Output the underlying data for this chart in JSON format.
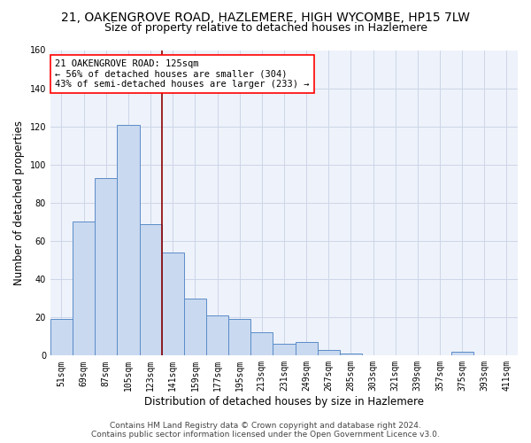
{
  "title_line1": "21, OAKENGROVE ROAD, HAZLEMERE, HIGH WYCOMBE, HP15 7LW",
  "title_line2": "Size of property relative to detached houses in Hazlemere",
  "xlabel": "Distribution of detached houses by size in Hazlemere",
  "ylabel": "Number of detached properties",
  "bar_labels": [
    "51sqm",
    "69sqm",
    "87sqm",
    "105sqm",
    "123sqm",
    "141sqm",
    "159sqm",
    "177sqm",
    "195sqm",
    "213sqm",
    "231sqm",
    "249sqm",
    "267sqm",
    "285sqm",
    "303sqm",
    "321sqm",
    "339sqm",
    "357sqm",
    "375sqm",
    "393sqm",
    "411sqm"
  ],
  "bar_values": [
    19,
    70,
    93,
    121,
    69,
    54,
    30,
    21,
    19,
    12,
    6,
    7,
    3,
    1,
    0,
    0,
    0,
    0,
    2,
    0,
    0
  ],
  "bar_color": "#c9d9f0",
  "bar_edge_color": "#5b8cc8",
  "grid_color": "#ccd6e8",
  "background_color": "#eef2fa",
  "vline_index": 4,
  "vline_color": "#8b0000",
  "annotation_text": "21 OAKENGROVE ROAD: 125sqm\n← 56% of detached houses are smaller (304)\n43% of semi-detached houses are larger (233) →",
  "annotation_box_color": "white",
  "annotation_box_edge": "red",
  "ylim": [
    0,
    160
  ],
  "yticks": [
    0,
    20,
    40,
    60,
    80,
    100,
    120,
    140,
    160
  ],
  "footer_line1": "Contains HM Land Registry data © Crown copyright and database right 2024.",
  "footer_line2": "Contains public sector information licensed under the Open Government Licence v3.0.",
  "title_fontsize": 10,
  "subtitle_fontsize": 9,
  "axis_label_fontsize": 8.5,
  "tick_fontsize": 7,
  "annot_fontsize": 7.5,
  "footer_fontsize": 6.5
}
